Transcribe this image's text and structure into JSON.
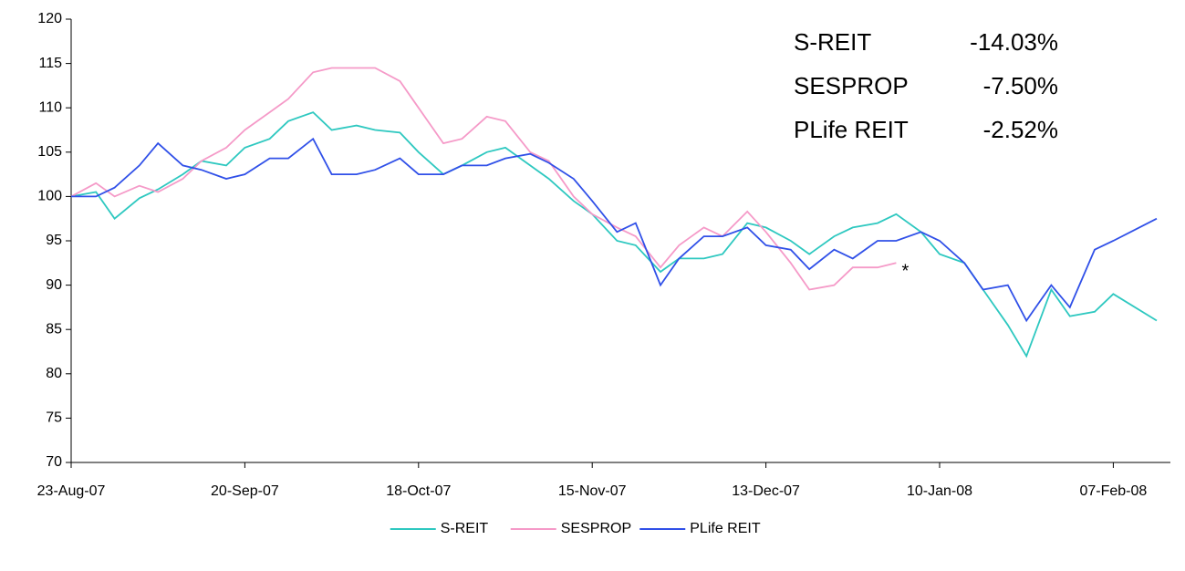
{
  "chart_data": {
    "type": "line",
    "x": [
      "2007-08-23",
      "2007-08-27",
      "2007-08-30",
      "2007-09-03",
      "2007-09-06",
      "2007-09-10",
      "2007-09-13",
      "2007-09-17",
      "2007-09-20",
      "2007-09-24",
      "2007-09-27",
      "2007-10-01",
      "2007-10-04",
      "2007-10-08",
      "2007-10-11",
      "2007-10-15",
      "2007-10-18",
      "2007-10-22",
      "2007-10-25",
      "2007-10-29",
      "2007-11-01",
      "2007-11-05",
      "2007-11-08",
      "2007-11-12",
      "2007-11-15",
      "2007-11-19",
      "2007-11-22",
      "2007-11-26",
      "2007-11-29",
      "2007-12-03",
      "2007-12-06",
      "2007-12-10",
      "2007-12-13",
      "2007-12-17",
      "2007-12-20",
      "2007-12-24",
      "2007-12-27",
      "2007-12-31",
      "2008-01-03",
      "2008-01-07",
      "2008-01-10",
      "2008-01-14",
      "2008-01-17",
      "2008-01-21",
      "2008-01-24",
      "2008-01-28",
      "2008-01-31",
      "2008-02-04",
      "2008-02-07",
      "2008-02-14"
    ],
    "series": [
      {
        "name": "S-REIT",
        "color": "#2ec8c0",
        "values": [
          100,
          100.5,
          97.5,
          99.8,
          100.8,
          102.5,
          104,
          103.5,
          105.5,
          106.5,
          108.5,
          109.5,
          107.5,
          108,
          107.5,
          107.2,
          105,
          102.5,
          103.5,
          105,
          105.5,
          103.5,
          102,
          99.5,
          98,
          95,
          94.5,
          91.5,
          93,
          93,
          93.5,
          97,
          96.5,
          95,
          93.5,
          95.5,
          96.5,
          97,
          98,
          96,
          93.5,
          92.5,
          89.5,
          85.5,
          82,
          89.5,
          86.5,
          87,
          89,
          86
        ]
      },
      {
        "name": "SESPROP",
        "color": "#f59ac8",
        "values": [
          100,
          101.5,
          100,
          101.2,
          100.5,
          102,
          104,
          105.5,
          107.5,
          109.5,
          111,
          114,
          114.5,
          114.5,
          114.5,
          113,
          110,
          106,
          106.5,
          109,
          108.5,
          105,
          104,
          100,
          98,
          96.5,
          95.5,
          92,
          94.5,
          96.5,
          95.5,
          98.3,
          96,
          92.5,
          89.5,
          90,
          92,
          92,
          92.5,
          null,
          null,
          null,
          null,
          null,
          null,
          null,
          null,
          null,
          null,
          null
        ]
      },
      {
        "name": "PLife REIT",
        "color": "#3050e8",
        "values": [
          100,
          100,
          101,
          103.5,
          106,
          103.5,
          103,
          102,
          102.5,
          104.3,
          104.3,
          106.5,
          102.5,
          102.5,
          103,
          104.3,
          102.5,
          102.5,
          103.5,
          103.5,
          104.3,
          104.8,
          103.8,
          102,
          99.5,
          96,
          97,
          90,
          93,
          95.5,
          95.5,
          96.5,
          94.5,
          94,
          91.8,
          94,
          93,
          95,
          95,
          96,
          95,
          92.5,
          89.5,
          90,
          86,
          90,
          87.5,
          94,
          95,
          97.5
        ]
      }
    ],
    "xticks": [
      {
        "value": "2007-08-23",
        "label": "23-Aug-07"
      },
      {
        "value": "2007-09-20",
        "label": "20-Sep-07"
      },
      {
        "value": "2007-10-18",
        "label": "18-Oct-07"
      },
      {
        "value": "2007-11-15",
        "label": "15-Nov-07"
      },
      {
        "value": "2007-12-13",
        "label": "13-Dec-07"
      },
      {
        "value": "2008-01-10",
        "label": "10-Jan-08"
      },
      {
        "value": "2008-02-07",
        "label": "07-Feb-08"
      }
    ],
    "xlim": [
      "2007-08-23",
      "2008-02-14"
    ],
    "ylim": [
      70,
      120
    ],
    "yticks": [
      70,
      75,
      80,
      85,
      90,
      95,
      100,
      105,
      110,
      115,
      120
    ],
    "annotations": [
      {
        "label": "S-REIT",
        "text": "-14.03%"
      },
      {
        "label": "SESPROP",
        "text": "-7.50%"
      },
      {
        "label": "PLife REIT",
        "text": "-2.52%"
      }
    ],
    "marker_note": "*",
    "legend": "bottom"
  }
}
